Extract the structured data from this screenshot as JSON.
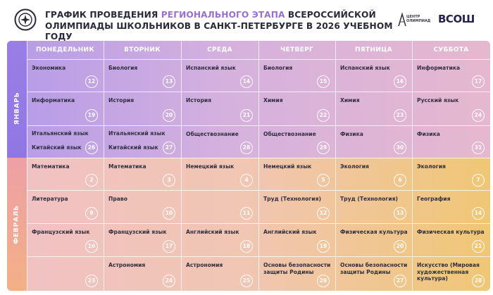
{
  "header": {
    "title_part1": "График проведения ",
    "title_accent": "регионального этапа",
    "title_part2": " всероссийской олимпиады школьников в Санкт-Петербурге в 2026 учебном году",
    "brand_center_label": "ЦЕНТР ОЛИМПИАД",
    "brand_vsosh": "ВСОШ"
  },
  "days": [
    "ПОНЕДЕЛЬНИК",
    "ВТОРНИК",
    "СРЕДА",
    "ЧЕТВЕРГ",
    "ПЯТНИЦА",
    "СУББОТА"
  ],
  "months": [
    {
      "name": "ЯНВАРЬ",
      "rows": [
        [
          {
            "subjects": [
              "Экономика"
            ],
            "day": "12"
          },
          {
            "subjects": [
              "Биология"
            ],
            "day": "13"
          },
          {
            "subjects": [
              "Испанский язык"
            ],
            "day": "14"
          },
          {
            "subjects": [
              "Биология"
            ],
            "day": "15"
          },
          {
            "subjects": [
              "Испанский язык"
            ],
            "day": "16"
          },
          {
            "subjects": [
              "Информатика"
            ],
            "day": "17"
          }
        ],
        [
          {
            "subjects": [
              "Информатика"
            ],
            "day": "19"
          },
          {
            "subjects": [
              "История"
            ],
            "day": "20"
          },
          {
            "subjects": [
              "История"
            ],
            "day": "21"
          },
          {
            "subjects": [
              "Химия"
            ],
            "day": "22"
          },
          {
            "subjects": [
              "Химия"
            ],
            "day": "23"
          },
          {
            "subjects": [
              "Русский язык"
            ],
            "day": "24"
          }
        ],
        [
          {
            "subjects": [
              "Итальянский язык",
              "Китайский язык"
            ],
            "day": "26"
          },
          {
            "subjects": [
              "Итальянский язык",
              "Китайский язык"
            ],
            "day": "27"
          },
          {
            "subjects": [
              "Обществознание"
            ],
            "day": "28"
          },
          {
            "subjects": [
              "Обществознание"
            ],
            "day": "29"
          },
          {
            "subjects": [
              "Физика"
            ],
            "day": "30"
          },
          {
            "subjects": [
              "Физика"
            ],
            "day": "31"
          }
        ]
      ]
    },
    {
      "name": "ФЕВРАЛЬ",
      "rows": [
        [
          {
            "subjects": [
              "Математика"
            ],
            "day": "2"
          },
          {
            "subjects": [
              "Математика"
            ],
            "day": "3"
          },
          {
            "subjects": [
              "Немецкий язык"
            ],
            "day": "4"
          },
          {
            "subjects": [
              "Немецкий язык"
            ],
            "day": "5"
          },
          {
            "subjects": [
              "Экология"
            ],
            "day": "6"
          },
          {
            "subjects": [
              "Экология"
            ],
            "day": "7"
          }
        ],
        [
          {
            "subjects": [
              "Литература"
            ],
            "day": "9"
          },
          {
            "subjects": [
              "Право"
            ],
            "day": "10"
          },
          {
            "subjects": [],
            "day": "11"
          },
          {
            "subjects": [
              "Труд (Технология)"
            ],
            "day": "12"
          },
          {
            "subjects": [
              "Труд (Технология)"
            ],
            "day": "13"
          },
          {
            "subjects": [
              "География"
            ],
            "day": "14"
          }
        ],
        [
          {
            "subjects": [
              "Французский язык"
            ],
            "day": "16"
          },
          {
            "subjects": [
              "Французский язык"
            ],
            "day": "17"
          },
          {
            "subjects": [
              "Английский язык"
            ],
            "day": "18"
          },
          {
            "subjects": [
              "Английский язык"
            ],
            "day": "19"
          },
          {
            "subjects": [
              "Физическая культура"
            ],
            "day": "20"
          },
          {
            "subjects": [
              "Физическая культура"
            ],
            "day": "21"
          }
        ],
        [
          {
            "subjects": [],
            "day": "23"
          },
          {
            "subjects": [
              "Астрономия"
            ],
            "day": "24"
          },
          {
            "subjects": [
              "Астрономия"
            ],
            "day": "25"
          },
          {
            "subjects": [
              "Основы безопасности защиты Родины"
            ],
            "day": "26"
          },
          {
            "subjects": [
              "Основы безопасности защиты Родины"
            ],
            "day": "27"
          },
          {
            "subjects": [
              "Искусство (Мировая художественная культура)"
            ],
            "day": "28"
          }
        ]
      ]
    }
  ]
}
